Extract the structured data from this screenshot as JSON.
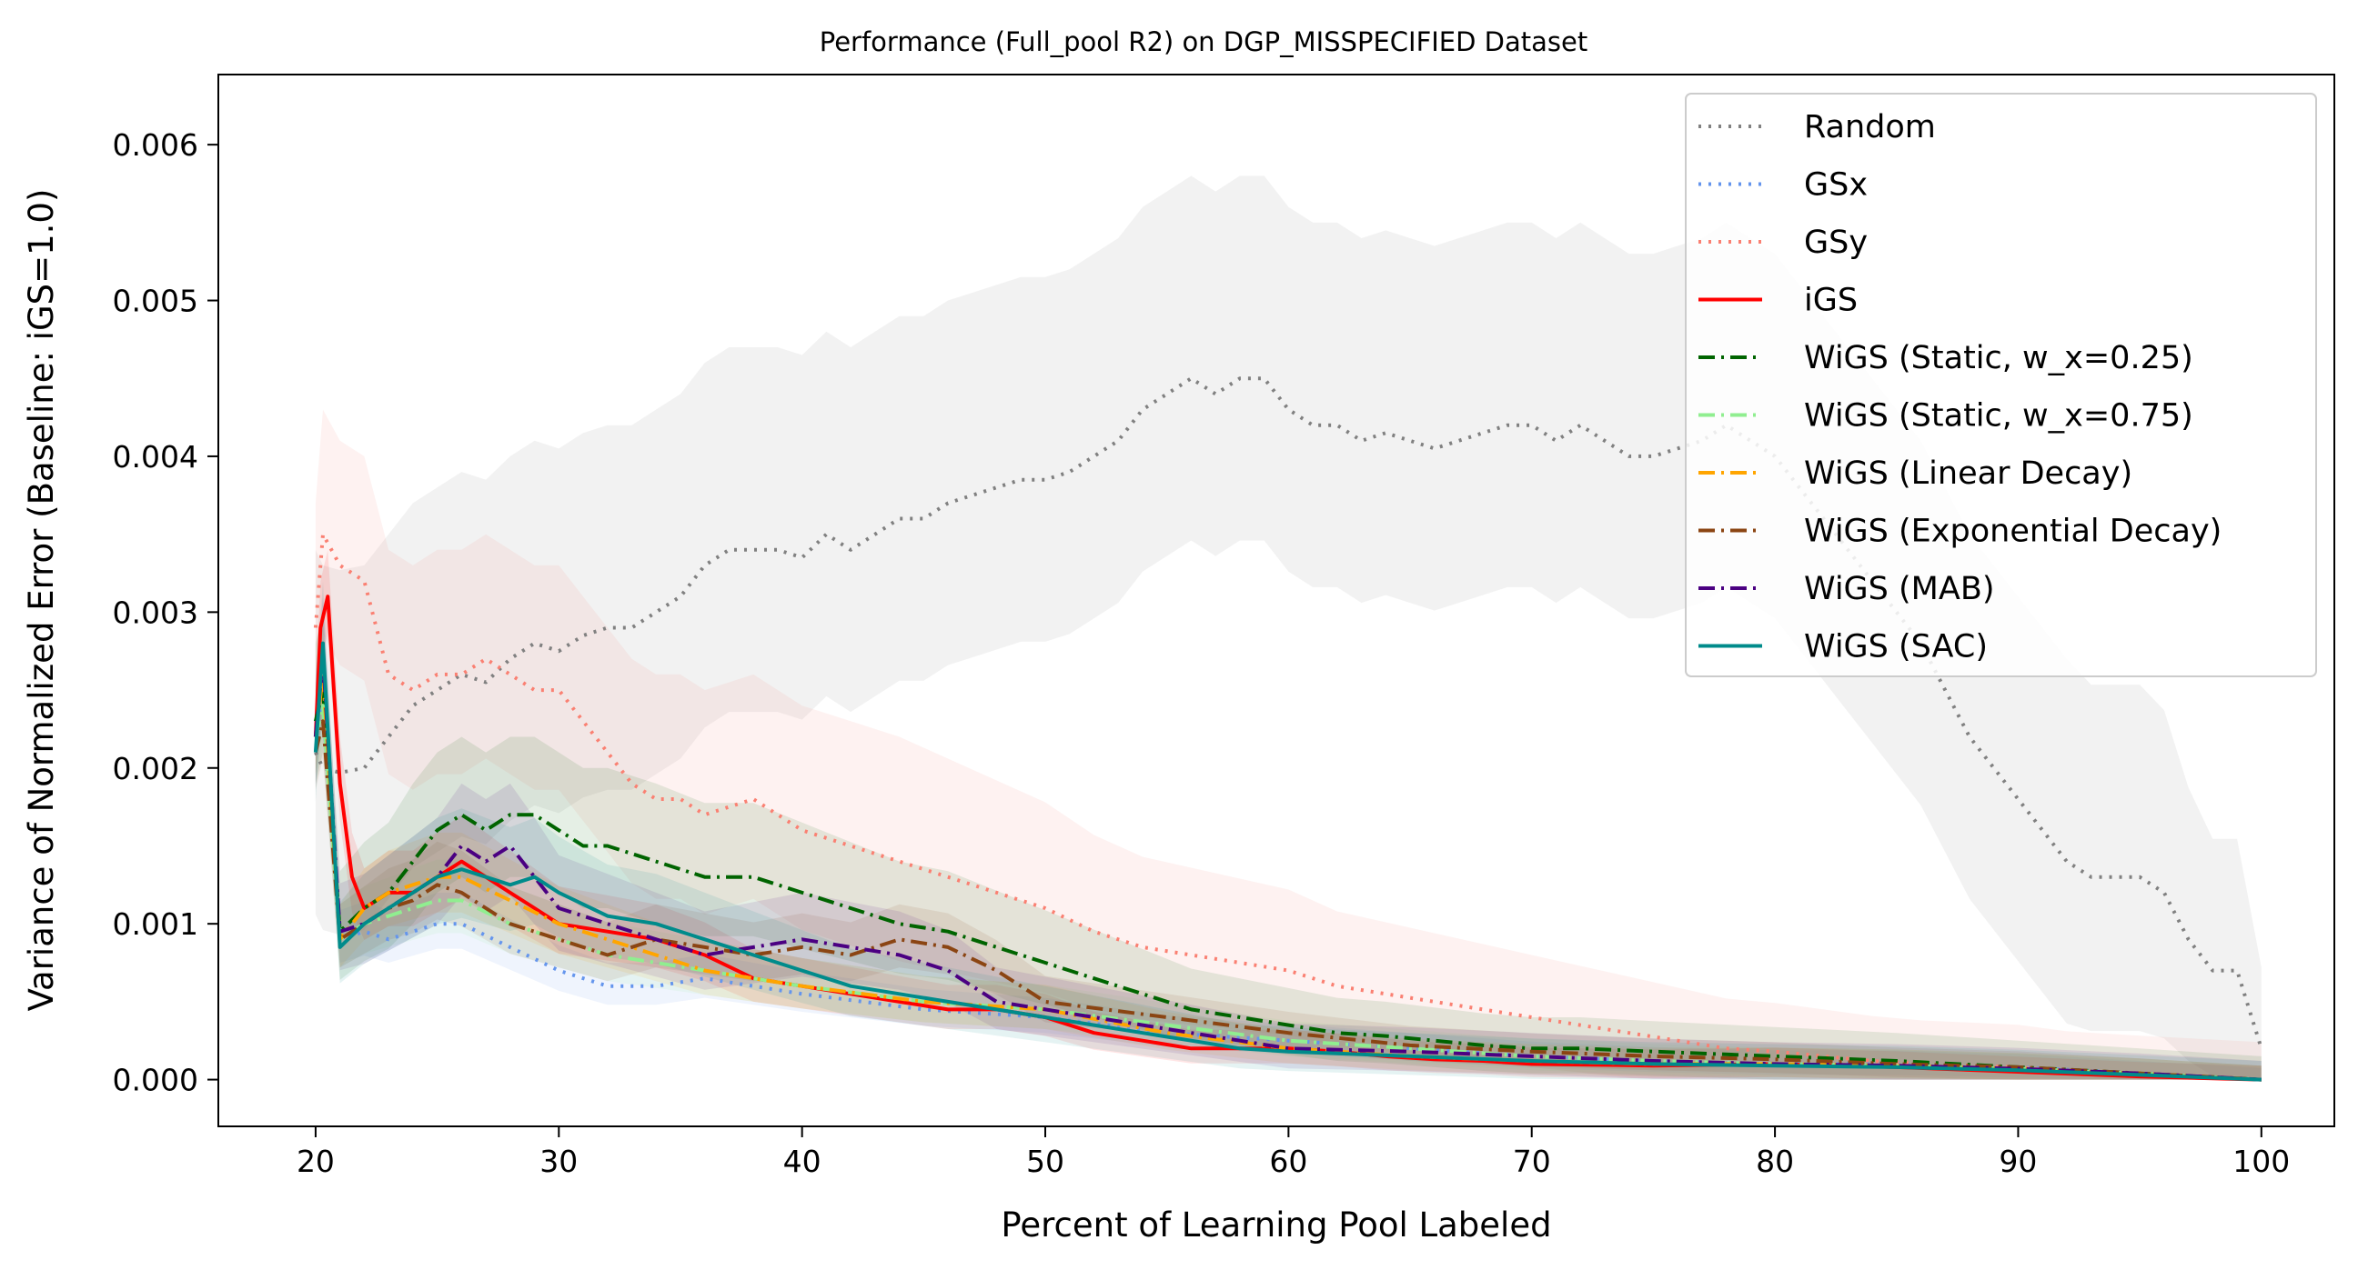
{
  "chart_data": {
    "type": "line",
    "title": "Performance (Full_pool R2) on DGP_MISSPECIFIED Dataset",
    "xlabel": "Percent of Learning Pool Labeled",
    "ylabel": "Variance of Normalized Error (Baseline: iGS=1.0)",
    "xlim": [
      16,
      103
    ],
    "ylim": [
      -0.0003,
      0.00645
    ],
    "xticks": [
      20,
      30,
      40,
      50,
      60,
      70,
      80,
      90,
      100
    ],
    "yticks": [
      0.0,
      0.001,
      0.002,
      0.003,
      0.004,
      0.005,
      0.006
    ],
    "ytick_labels": [
      "0.000",
      "0.001",
      "0.002",
      "0.003",
      "0.004",
      "0.005",
      "0.006"
    ],
    "grid": false,
    "legend_position": "top-right",
    "series": [
      {
        "name": "Random",
        "color": "#808080",
        "dash": "dotted",
        "x": [
          20,
          20.3,
          21,
          22,
          23,
          24,
          25,
          26,
          27,
          28,
          29,
          30,
          31,
          32,
          33,
          34,
          35,
          36,
          37,
          38,
          39,
          40,
          41,
          42,
          43,
          44,
          45,
          46,
          47,
          48,
          49,
          50,
          51,
          52,
          53,
          54,
          55,
          56,
          57,
          58,
          59,
          60,
          61,
          62,
          63,
          64,
          65,
          66,
          67,
          68,
          69,
          70,
          71,
          72,
          73,
          74,
          75,
          76,
          77,
          78,
          79,
          80,
          81,
          82,
          83,
          84,
          85,
          86,
          87,
          88,
          89,
          90,
          91,
          92,
          93,
          94,
          95,
          96,
          97,
          98,
          99,
          100
        ],
        "y": [
          0.0021,
          0.002,
          0.00197,
          0.002,
          0.0022,
          0.0024,
          0.0025,
          0.0026,
          0.00255,
          0.0027,
          0.0028,
          0.00275,
          0.00285,
          0.0029,
          0.0029,
          0.003,
          0.0031,
          0.0033,
          0.0034,
          0.0034,
          0.0034,
          0.00335,
          0.0035,
          0.0034,
          0.0035,
          0.0036,
          0.0036,
          0.0037,
          0.00375,
          0.0038,
          0.00385,
          0.00385,
          0.0039,
          0.004,
          0.0041,
          0.0043,
          0.0044,
          0.0045,
          0.0044,
          0.0045,
          0.0045,
          0.0043,
          0.0042,
          0.0042,
          0.0041,
          0.00415,
          0.0041,
          0.00405,
          0.0041,
          0.00415,
          0.0042,
          0.0042,
          0.0041,
          0.0042,
          0.0041,
          0.004,
          0.004,
          0.00405,
          0.0041,
          0.0042,
          0.0041,
          0.004,
          0.0038,
          0.0036,
          0.0034,
          0.0032,
          0.003,
          0.0028,
          0.0025,
          0.0022,
          0.002,
          0.0018,
          0.0016,
          0.0014,
          0.0013,
          0.0013,
          0.0013,
          0.0012,
          0.0009,
          0.0007,
          0.0007,
          0.0002
        ],
        "band": 0.0013
      },
      {
        "name": "GSx",
        "color": "#6495ED",
        "dash": "dotted",
        "x": [
          20,
          20.3,
          21,
          22,
          23,
          24,
          25,
          26,
          28,
          30,
          32,
          34,
          36,
          38,
          40,
          45,
          50,
          55,
          60,
          65,
          70,
          75,
          80,
          85,
          90,
          95,
          100
        ],
        "y": [
          0.0023,
          0.0024,
          0.0009,
          0.00095,
          0.0009,
          0.00095,
          0.001,
          0.001,
          0.00085,
          0.0007,
          0.0006,
          0.0006,
          0.00065,
          0.0006,
          0.00055,
          0.00045,
          0.0004,
          0.0003,
          0.00025,
          0.0002,
          0.00015,
          0.00012,
          0.0001,
          0.0001,
          8e-05,
          4e-05,
          0.0
        ],
        "band": 0.00025
      },
      {
        "name": "GSy",
        "color": "#FA8072",
        "dash": "dotted",
        "x": [
          20,
          20.3,
          21,
          22,
          23,
          24,
          25,
          26,
          27,
          28,
          29,
          30,
          31,
          32,
          33,
          34,
          35,
          36,
          38,
          40,
          42,
          44,
          46,
          48,
          50,
          52,
          54,
          56,
          58,
          60,
          62,
          64,
          66,
          68,
          70,
          72,
          74,
          76,
          78,
          80,
          82,
          84,
          86,
          88,
          90,
          92,
          95,
          100
        ],
        "y": [
          0.0029,
          0.0035,
          0.0033,
          0.0032,
          0.0026,
          0.0025,
          0.0026,
          0.0026,
          0.0027,
          0.0026,
          0.0025,
          0.0025,
          0.0023,
          0.0021,
          0.0019,
          0.0018,
          0.0018,
          0.0017,
          0.0018,
          0.0016,
          0.0015,
          0.0014,
          0.0013,
          0.0012,
          0.0011,
          0.00095,
          0.00085,
          0.0008,
          0.00075,
          0.0007,
          0.0006,
          0.00055,
          0.0005,
          0.00045,
          0.0004,
          0.00035,
          0.0003,
          0.00025,
          0.0002,
          0.00018,
          0.00015,
          0.00012,
          0.0001,
          9e-05,
          8e-05,
          5e-05,
          3e-05,
          0.0
        ],
        "band": 0.0008
      },
      {
        "name": "iGS",
        "color": "#FF0000",
        "dash": "solid",
        "x": [
          20,
          20.2,
          20.5,
          21,
          21.5,
          22,
          23,
          24,
          25,
          26,
          27,
          28,
          29,
          30,
          32,
          34,
          36,
          38,
          40,
          42,
          44,
          46,
          48,
          50,
          52,
          54,
          56,
          58,
          60,
          62,
          64,
          66,
          68,
          70,
          75,
          80,
          85,
          90,
          95,
          100
        ],
        "y": [
          0.0022,
          0.0029,
          0.0031,
          0.0019,
          0.0013,
          0.0011,
          0.0012,
          0.0012,
          0.0013,
          0.0014,
          0.0013,
          0.0012,
          0.0011,
          0.001,
          0.00095,
          0.0009,
          0.0008,
          0.00065,
          0.0006,
          0.00055,
          0.0005,
          0.00045,
          0.00045,
          0.0004,
          0.0003,
          0.00025,
          0.0002,
          0.0002,
          0.0002,
          0.00018,
          0.00015,
          0.00013,
          0.00012,
          0.0001,
          9e-05,
          0.0001,
          8e-05,
          5e-05,
          2e-05,
          0.0
        ],
        "band": 0.0003
      },
      {
        "name": "WiGS (Static, w_x=0.25)",
        "color": "#006400",
        "dash": "dashdot",
        "x": [
          20,
          20.3,
          21,
          22,
          23,
          24,
          25,
          26,
          27,
          28,
          29,
          30,
          31,
          32,
          34,
          36,
          38,
          40,
          42,
          44,
          46,
          48,
          50,
          52,
          54,
          56,
          58,
          60,
          62,
          64,
          66,
          68,
          70,
          72,
          75,
          80,
          85,
          90,
          95,
          100
        ],
        "y": [
          0.0023,
          0.0025,
          0.00095,
          0.0011,
          0.0012,
          0.0014,
          0.0016,
          0.0017,
          0.0016,
          0.0017,
          0.0017,
          0.0016,
          0.0015,
          0.0015,
          0.0014,
          0.0013,
          0.0013,
          0.0012,
          0.0011,
          0.001,
          0.00095,
          0.00085,
          0.00075,
          0.00065,
          0.00055,
          0.00045,
          0.0004,
          0.00035,
          0.0003,
          0.00028,
          0.00025,
          0.00022,
          0.0002,
          0.0002,
          0.00018,
          0.00015,
          0.00012,
          8e-05,
          4e-05,
          0.0
        ],
        "band": 0.0005
      },
      {
        "name": "WiGS (Static, w_x=0.75)",
        "color": "#90EE90",
        "dash": "dashdot",
        "x": [
          20,
          20.3,
          21,
          22,
          23,
          24,
          25,
          26,
          28,
          30,
          32,
          34,
          36,
          38,
          40,
          45,
          50,
          55,
          60,
          65,
          70,
          75,
          80,
          85,
          90,
          95,
          100
        ],
        "y": [
          0.0022,
          0.0024,
          0.0009,
          0.001,
          0.00105,
          0.0011,
          0.00115,
          0.00115,
          0.001,
          0.0009,
          0.0008,
          0.00075,
          0.0007,
          0.00065,
          0.0006,
          0.0005,
          0.00045,
          0.00035,
          0.00025,
          0.0002,
          0.00015,
          0.00012,
          0.0001,
          9e-05,
          7e-05,
          4e-05,
          0.0
        ],
        "band": 0.0003
      },
      {
        "name": "WiGS (Linear Decay)",
        "color": "#FFA500",
        "dash": "dashdot",
        "x": [
          20,
          20.3,
          21,
          22,
          23,
          24,
          25,
          26,
          28,
          30,
          32,
          34,
          36,
          38,
          40,
          45,
          50,
          55,
          60,
          65,
          70,
          75,
          80,
          85,
          90,
          95,
          100
        ],
        "y": [
          0.0022,
          0.0026,
          0.0009,
          0.0011,
          0.0012,
          0.00125,
          0.0013,
          0.0013,
          0.00115,
          0.001,
          0.0009,
          0.0008,
          0.0007,
          0.00065,
          0.0006,
          0.0005,
          0.00045,
          0.0003,
          0.0002,
          0.00015,
          0.00012,
          0.0001,
          0.0001,
          9e-05,
          7e-05,
          4e-05,
          0.0
        ],
        "band": 0.0003
      },
      {
        "name": "WiGS (Exponential Decay)",
        "color": "#8B4513",
        "dash": "dashdot",
        "x": [
          20,
          20.3,
          21,
          22,
          23,
          24,
          25,
          26,
          27,
          28,
          30,
          32,
          34,
          36,
          38,
          40,
          42,
          44,
          46,
          48,
          50,
          55,
          60,
          65,
          70,
          75,
          80,
          85,
          90,
          95,
          100
        ],
        "y": [
          0.0021,
          0.0023,
          0.0009,
          0.001,
          0.0011,
          0.00115,
          0.00125,
          0.0012,
          0.0011,
          0.001,
          0.0009,
          0.0008,
          0.0009,
          0.00085,
          0.0008,
          0.00085,
          0.0008,
          0.0009,
          0.00085,
          0.0007,
          0.0005,
          0.0004,
          0.0003,
          0.00022,
          0.00018,
          0.00015,
          0.00013,
          0.0001,
          8e-05,
          4e-05,
          0.0
        ],
        "band": 0.0003
      },
      {
        "name": "WiGS (MAB)",
        "color": "#4B0082",
        "dash": "dashdot",
        "x": [
          20,
          20.3,
          21,
          22,
          23,
          24,
          25,
          26,
          27,
          28,
          29,
          30,
          32,
          34,
          36,
          38,
          40,
          42,
          44,
          46,
          48,
          50,
          52,
          54,
          56,
          58,
          60,
          65,
          70,
          75,
          80,
          85,
          90,
          95,
          100
        ],
        "y": [
          0.0022,
          0.0027,
          0.00095,
          0.001,
          0.0011,
          0.0012,
          0.0013,
          0.0015,
          0.0014,
          0.0015,
          0.0013,
          0.0011,
          0.001,
          0.0009,
          0.0008,
          0.00085,
          0.0009,
          0.00085,
          0.0008,
          0.0007,
          0.0005,
          0.00045,
          0.0004,
          0.00035,
          0.0003,
          0.00025,
          0.0002,
          0.00018,
          0.00015,
          0.00012,
          0.0001,
          9e-05,
          7e-05,
          4e-05,
          0.0
        ],
        "band": 0.0004
      },
      {
        "name": "WiGS (SAC)",
        "color": "#008B8B",
        "dash": "solid",
        "x": [
          20,
          20.3,
          21,
          22,
          23,
          24,
          25,
          26,
          27,
          28,
          29,
          30,
          32,
          34,
          36,
          38,
          40,
          42,
          44,
          46,
          48,
          50,
          52,
          54,
          56,
          58,
          60,
          65,
          70,
          75,
          80,
          85,
          90,
          95,
          100
        ],
        "y": [
          0.0021,
          0.0028,
          0.00085,
          0.001,
          0.0011,
          0.0012,
          0.0013,
          0.00135,
          0.0013,
          0.00125,
          0.0013,
          0.0012,
          0.00105,
          0.001,
          0.0009,
          0.0008,
          0.0007,
          0.0006,
          0.00055,
          0.0005,
          0.00045,
          0.0004,
          0.00035,
          0.0003,
          0.00025,
          0.0002,
          0.00018,
          0.00015,
          0.00012,
          0.0001,
          9e-05,
          8e-05,
          6e-05,
          3e-05,
          0.0
        ],
        "band": 0.0004
      }
    ]
  }
}
